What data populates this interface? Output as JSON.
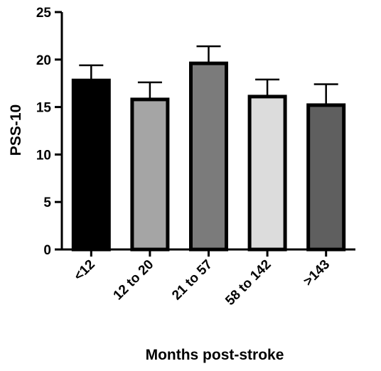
{
  "chart_data": {
    "type": "bar",
    "title": "",
    "xlabel": "Months post-stroke",
    "ylabel": "PSS-10",
    "categories": [
      "<12",
      "12 to 20",
      "21 to 57",
      "58 to 142",
      ">143"
    ],
    "values": [
      17.8,
      15.8,
      19.6,
      16.1,
      15.2
    ],
    "error_upper": [
      19.4,
      17.6,
      21.4,
      17.9,
      17.4
    ],
    "bar_colors": [
      "#000000",
      "#a5a5a5",
      "#7b7b7b",
      "#dcdcdc",
      "#5f5f5f"
    ],
    "ylim": [
      0,
      25
    ],
    "yticks": [
      0,
      5,
      10,
      15,
      20,
      25
    ],
    "grid": false,
    "legend": "none"
  }
}
